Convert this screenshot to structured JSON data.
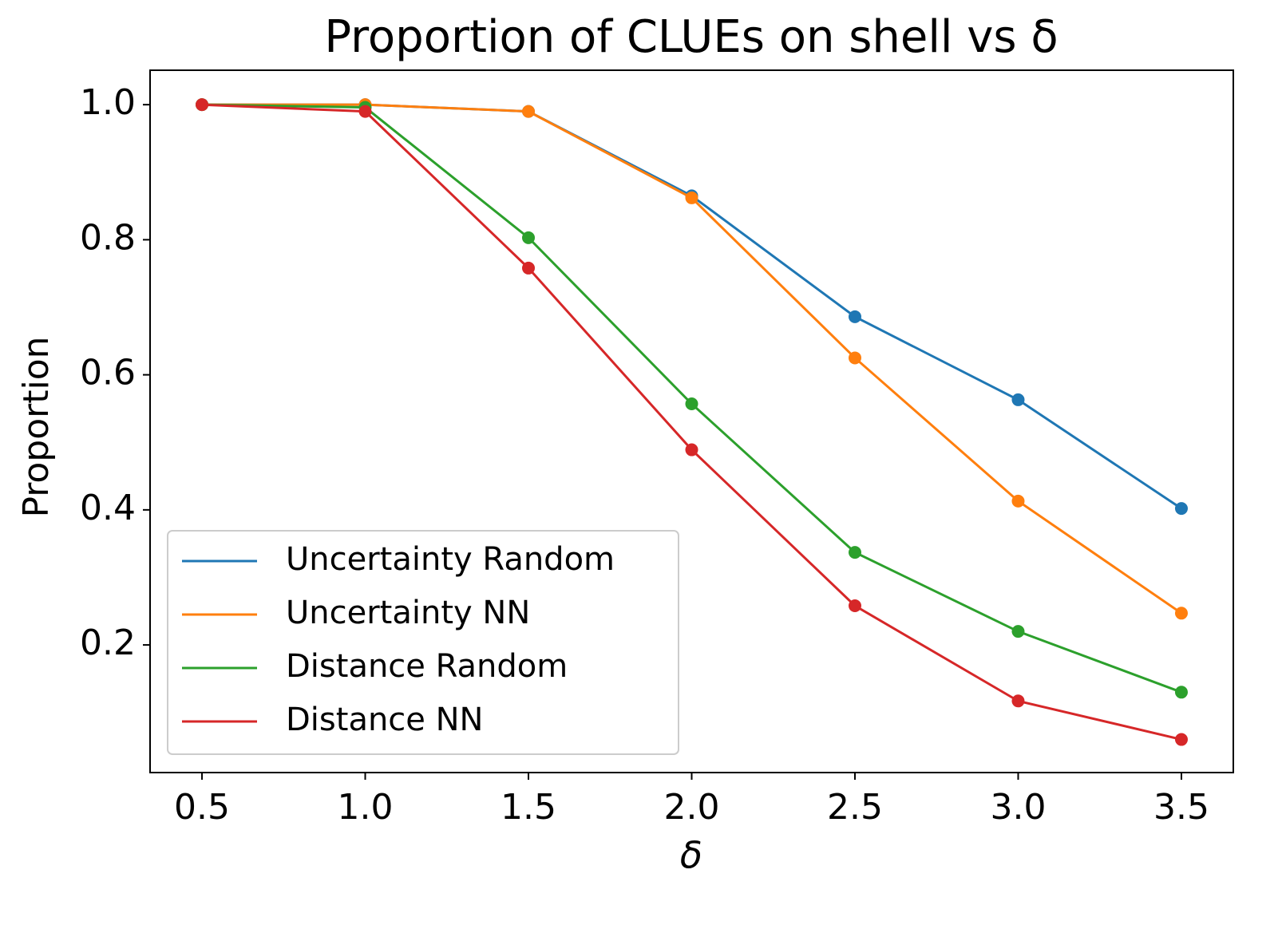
{
  "chart_data": {
    "type": "line",
    "title": "Proportion of CLUEs on shell vs δ",
    "xlabel": "δ",
    "ylabel": "Proportion",
    "x": [
      0.5,
      1.0,
      1.5,
      2.0,
      2.5,
      3.0,
      3.5
    ],
    "series": [
      {
        "name": "Uncertainty Random",
        "color": "#1f77b4",
        "values": [
          1.0,
          1.0,
          0.99,
          0.865,
          0.686,
          0.563,
          0.402
        ]
      },
      {
        "name": "Uncertainty NN",
        "color": "#ff7f0e",
        "values": [
          1.0,
          1.0,
          0.99,
          0.862,
          0.625,
          0.413,
          0.247
        ]
      },
      {
        "name": "Distance Random",
        "color": "#2ca02c",
        "values": [
          1.0,
          0.996,
          0.803,
          0.557,
          0.337,
          0.22,
          0.13
        ]
      },
      {
        "name": "Distance NN",
        "color": "#d62728",
        "values": [
          1.0,
          0.99,
          0.758,
          0.489,
          0.258,
          0.117,
          0.06
        ]
      }
    ],
    "xlim": [
      0.341,
      3.659
    ],
    "ylim": [
      0.011,
      1.051
    ],
    "xticks": [
      0.5,
      {
        "value": 1.0,
        "label": "1.0"
      },
      1.5,
      {
        "value": 2.0,
        "label": "2.0"
      },
      2.5,
      {
        "value": 3.0,
        "label": "3.0"
      },
      3.5
    ],
    "yticks": [
      0.2,
      0.4,
      0.6,
      0.8,
      {
        "value": 1.0,
        "label": "1.0"
      }
    ],
    "legend": "lower left",
    "grid": false
  }
}
